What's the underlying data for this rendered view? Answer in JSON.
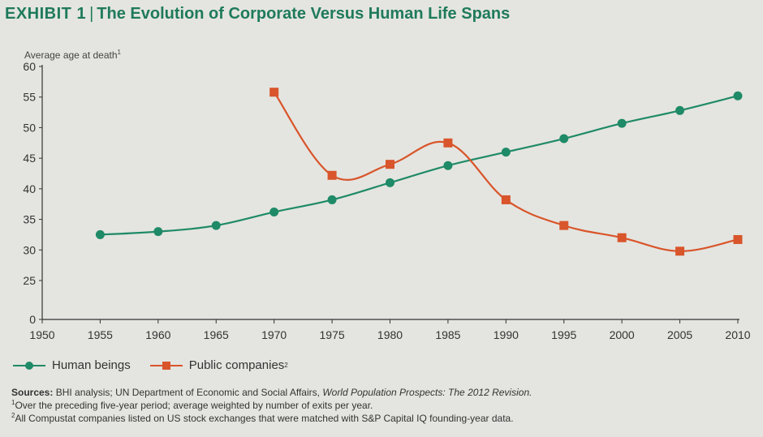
{
  "header": {
    "exhibit": "EXHIBIT 1",
    "separator": "|",
    "title": "The Evolution of Corporate Versus Human Life Spans"
  },
  "chart_data": {
    "type": "line",
    "title": "The Evolution of Corporate Versus Human Life Spans",
    "xlabel": "",
    "ylabel": "Average age at death",
    "ylabel_sup": "1",
    "xlim": [
      1950,
      2010
    ],
    "ylim": [
      0,
      60
    ],
    "x_ticks": [
      1950,
      1955,
      1960,
      1965,
      1970,
      1975,
      1980,
      1985,
      1990,
      1995,
      2000,
      2005,
      2010
    ],
    "y_ticks": [
      0,
      25,
      30,
      35,
      40,
      45,
      50,
      55,
      60
    ],
    "series": [
      {
        "name": "Human beings",
        "sup": "",
        "color": "#1f8a67",
        "marker": "circle",
        "x": [
          1955,
          1960,
          1965,
          1970,
          1975,
          1980,
          1985,
          1990,
          1995,
          2000,
          2005,
          2010
        ],
        "values": [
          32.5,
          33.0,
          34.0,
          36.2,
          38.2,
          41.0,
          43.8,
          46.0,
          48.2,
          50.7,
          52.8,
          55.2
        ]
      },
      {
        "name": "Public companies",
        "sup": "2",
        "color": "#d9552b",
        "marker": "square",
        "x": [
          1970,
          1975,
          1980,
          1985,
          1990,
          1995,
          2000,
          2005,
          2010
        ],
        "values": [
          55.8,
          42.2,
          44.0,
          47.5,
          38.2,
          34.0,
          32.0,
          29.8,
          31.7
        ]
      }
    ],
    "legend_position": "bottom-left"
  },
  "notes": {
    "sources_label": "Sources:",
    "sources_text": "BHI analysis; UN Department of Economic and Social Affairs,",
    "sources_italic": "World Population Prospects: The 2012 Revision.",
    "footnote1_mark": "1",
    "footnote1": "Over the preceding five-year period; average weighted by number of exits per year.",
    "footnote2_mark": "2",
    "footnote2": "All Compustat companies listed on US stock exchanges that were matched with S&P Capital IQ founding-year data."
  }
}
